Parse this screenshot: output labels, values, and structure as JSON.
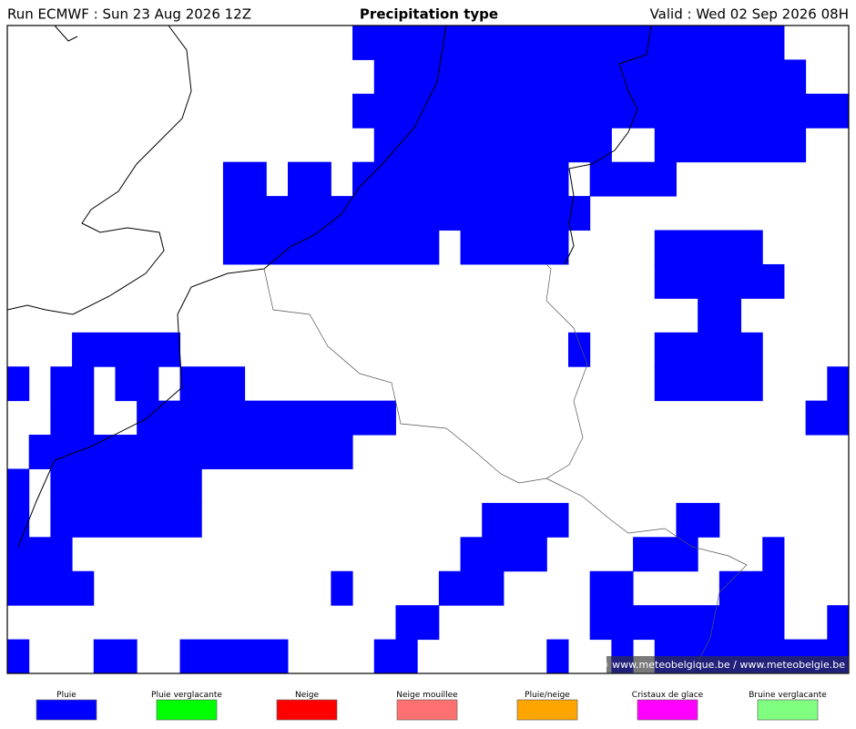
{
  "header": {
    "run": "Run ECMWF : Sun 23 Aug 2026 12Z",
    "title": "Precipitation type",
    "valid": "Valid : Wed 02 Sep 2026 08H"
  },
  "watermark": "© www.meteobelgique.be / www.meteobelgie.be",
  "legend": [
    {
      "label": "Pluie",
      "color": "#0000ff"
    },
    {
      "label": "Pluie verglacante",
      "color": "#00ff00"
    },
    {
      "label": "Neige",
      "color": "#ff0000"
    },
    {
      "label": "Neige mouillee",
      "color": "#ff7070"
    },
    {
      "label": "Pluie/neige",
      "color": "#ffa500"
    },
    {
      "label": "Cristaux de glace",
      "color": "#ff00ff"
    },
    {
      "label": "Bruine verglacante",
      "color": "#80ff80"
    }
  ]
}
